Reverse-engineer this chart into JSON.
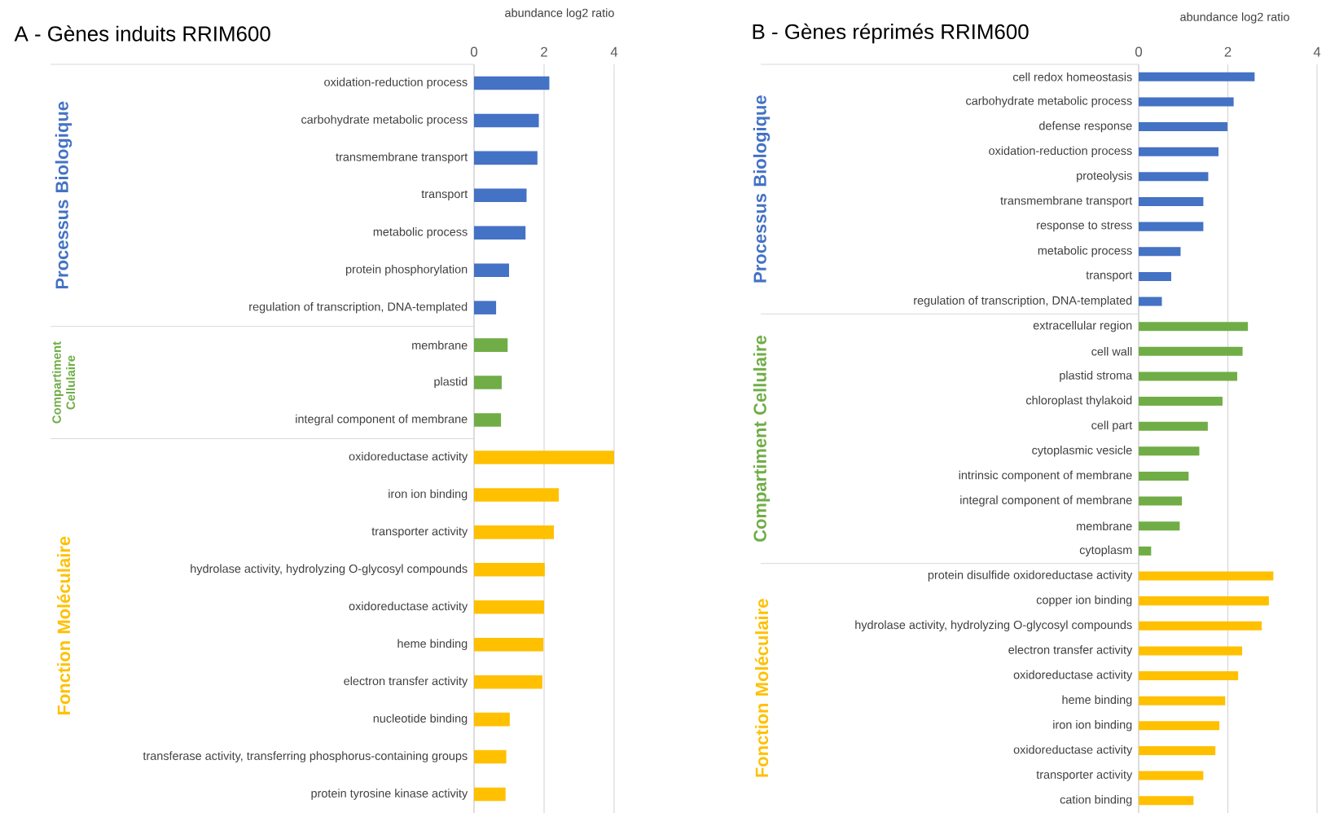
{
  "chart_data": [
    {
      "type": "bar",
      "orientation": "horizontal",
      "title": "A - Gènes induits RRIM600",
      "xlabel": "abundance  log2 ratio",
      "categories": [
        "oxidation-reduction process",
        "carbohydrate metabolic process",
        "transmembrane transport",
        "transport",
        "metabolic process",
        "protein phosphorylation",
        "regulation of transcription, DNA-templated",
        "membrane",
        "plastid",
        "integral component of membrane",
        "oxidoreductase activity",
        "iron ion binding",
        "transporter activity",
        "hydrolase activity, hydrolyzing O-glycosyl compounds",
        "oxidoreductase activity",
        "heme binding",
        "electron transfer activity",
        "nucleotide binding",
        "transferase activity, transferring phosphorus-containing groups",
        "protein tyrosine kinase activity"
      ],
      "series": [
        {
          "name": "Processus Biologique",
          "color": "#4472c4",
          "values": [
            2.15,
            1.85,
            1.81,
            1.5,
            1.47,
            1.0,
            0.63,
            null,
            null,
            null,
            null,
            null,
            null,
            null,
            null,
            null,
            null,
            null,
            null,
            null
          ]
        },
        {
          "name": "Compartiment Cellulaire",
          "color": "#70ad47",
          "values": [
            null,
            null,
            null,
            null,
            null,
            null,
            null,
            0.96,
            0.79,
            0.77,
            null,
            null,
            null,
            null,
            null,
            null,
            null,
            null,
            null,
            null
          ]
        },
        {
          "name": "Fonction Moléculaire",
          "color": "#ffc000",
          "values": [
            null,
            null,
            null,
            null,
            null,
            null,
            null,
            null,
            null,
            null,
            4.0,
            2.42,
            2.28,
            2.02,
            2.0,
            1.98,
            1.95,
            1.02,
            0.92,
            0.9
          ]
        }
      ],
      "xlim": [
        0,
        4
      ],
      "xticks": [
        0,
        2,
        4
      ],
      "grid": "x"
    },
    {
      "type": "bar",
      "orientation": "horizontal",
      "title": "B - Gènes réprimés RRIM600",
      "xlabel": "abundance  log2 ratio",
      "categories": [
        "cell redox homeostasis",
        "carbohydrate metabolic process",
        "defense response",
        "oxidation-reduction process",
        "proteolysis",
        "transmembrane transport",
        "response to stress",
        "metabolic process",
        "transport",
        "regulation of transcription, DNA-templated",
        "extracellular region",
        "cell wall",
        "plastid stroma",
        "chloroplast thylakoid",
        "cell part",
        "cytoplasmic vesicle",
        "intrinsic component of membrane",
        "integral component of membrane",
        "membrane",
        "cytoplasm",
        "protein disulfide oxidoreductase activity",
        "copper ion binding",
        "hydrolase activity, hydrolyzing O-glycosyl compounds",
        "electron transfer activity",
        "oxidoreductase activity",
        "heme binding",
        "iron ion binding",
        "oxidoreductase activity",
        "transporter activity",
        "cation binding"
      ],
      "series": [
        {
          "name": "Processus Biologique",
          "color": "#4472c4",
          "values": [
            2.6,
            2.13,
            1.99,
            1.79,
            1.56,
            1.45,
            1.45,
            0.94,
            0.73,
            0.52,
            null,
            null,
            null,
            null,
            null,
            null,
            null,
            null,
            null,
            null,
            null,
            null,
            null,
            null,
            null,
            null,
            null,
            null,
            null,
            null
          ]
        },
        {
          "name": "Compartiment Cellulaire",
          "color": "#70ad47",
          "values": [
            null,
            null,
            null,
            null,
            null,
            null,
            null,
            null,
            null,
            null,
            2.45,
            2.33,
            2.21,
            1.88,
            1.55,
            1.36,
            1.12,
            0.97,
            0.92,
            0.28,
            null,
            null,
            null,
            null,
            null,
            null,
            null,
            null,
            null,
            null
          ]
        },
        {
          "name": "Fonction Moléculaire",
          "color": "#ffc000",
          "values": [
            null,
            null,
            null,
            null,
            null,
            null,
            null,
            null,
            null,
            null,
            null,
            null,
            null,
            null,
            null,
            null,
            null,
            null,
            null,
            null,
            3.02,
            2.92,
            2.76,
            2.32,
            2.23,
            1.94,
            1.81,
            1.72,
            1.45,
            1.23
          ]
        }
      ],
      "xlim": [
        0,
        4
      ],
      "xticks": [
        0,
        2,
        4
      ],
      "grid": "x"
    }
  ]
}
